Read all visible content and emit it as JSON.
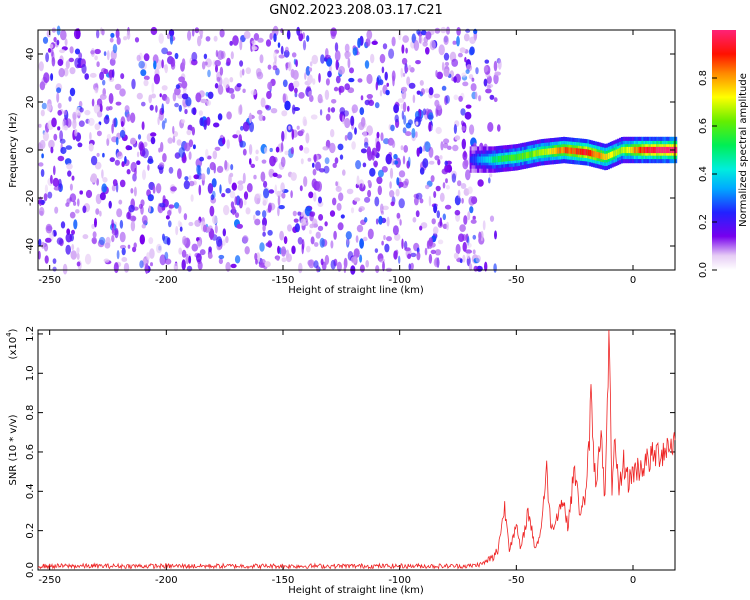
{
  "title": "GN02.2023.208.03.17.C21",
  "colors": {
    "snr_line": "#ee2222",
    "background": "#ffffff"
  },
  "chart_data": [
    {
      "type": "heatmap",
      "panel": "top",
      "xlabel": "Height of straight line (km)",
      "ylabel": "Frequency (Hz)",
      "xlim": [
        -255,
        18
      ],
      "ylim": [
        -50,
        50
      ],
      "xticks": [
        -250,
        -200,
        -150,
        -100,
        -50,
        0
      ],
      "xtick_labels": [
        "-250",
        "-200",
        "-150",
        "-100",
        "-50",
        "0"
      ],
      "yticks": [
        -40,
        -20,
        0,
        20,
        40
      ],
      "ytick_labels": [
        "-40",
        "-20",
        "0",
        "20",
        "40"
      ],
      "noise_region_x": [
        -255,
        -65
      ],
      "noise_amplitude": [
        0.05,
        0.3
      ],
      "signal_ridge": [
        {
          "x": -70,
          "freq": -4,
          "amp": 0.2
        },
        {
          "x": -60,
          "freq": -4,
          "amp": 0.45
        },
        {
          "x": -50,
          "freq": -3,
          "amp": 0.55
        },
        {
          "x": -40,
          "freq": -1,
          "amp": 0.6
        },
        {
          "x": -30,
          "freq": 0,
          "amp": 0.8
        },
        {
          "x": -20,
          "freq": -1,
          "amp": 0.9
        },
        {
          "x": -12,
          "freq": -3,
          "amp": 0.7
        },
        {
          "x": -5,
          "freq": 0,
          "amp": 0.6
        },
        {
          "x": 5,
          "freq": 0,
          "amp": 0.9
        },
        {
          "x": 18,
          "freq": 0,
          "amp": 1.0
        }
      ],
      "colorbar": {
        "label": "Normalized spectral amplitude",
        "range": [
          0,
          1
        ],
        "ticks": [
          0.0,
          0.2,
          0.4,
          0.6,
          0.8
        ],
        "tick_labels": [
          "0.0",
          "0.2",
          "0.4",
          "0.6",
          "0.8"
        ],
        "colormap": "rainbow (white-purple-blue-cyan-green-yellow-red-pink)"
      }
    },
    {
      "type": "line",
      "panel": "bottom",
      "xlabel": "Height of straight line (km)",
      "ylabel": "SNR (10 * v/v)",
      "scale_label": "(x10",
      "scale_exponent": "4",
      "xlim": [
        -255,
        18
      ],
      "ylim": [
        0,
        1.22
      ],
      "xticks": [
        -250,
        -200,
        -150,
        -100,
        -50,
        0
      ],
      "xtick_labels": [
        "-250",
        "-200",
        "-150",
        "-100",
        "-50",
        "0"
      ],
      "yticks": [
        0.0,
        0.2,
        0.4,
        0.6,
        0.8,
        1.0,
        1.2
      ],
      "ytick_labels": [
        "0.0",
        "0.2",
        "0.4",
        "0.6",
        "0.8",
        "1.0",
        "1.2"
      ],
      "series": [
        {
          "x": [
            -255,
            -240,
            -220,
            -200,
            -180,
            -160,
            -140,
            -120,
            -100,
            -80,
            -70,
            -65,
            -60,
            -58,
            -55,
            -53,
            -50,
            -48,
            -45,
            -42,
            -40,
            -37,
            -35,
            -32,
            -30,
            -28,
            -25,
            -23,
            -20,
            -18,
            -16,
            -14,
            -12,
            -10,
            -9,
            -8,
            -6,
            -4,
            -2,
            0,
            3,
            6,
            9,
            12,
            15,
            18
          ],
          "y": [
            0.02,
            0.02,
            0.02,
            0.02,
            0.02,
            0.02,
            0.02,
            0.02,
            0.02,
            0.02,
            0.02,
            0.03,
            0.06,
            0.1,
            0.32,
            0.12,
            0.22,
            0.1,
            0.3,
            0.12,
            0.16,
            0.5,
            0.2,
            0.3,
            0.36,
            0.22,
            0.52,
            0.3,
            0.38,
            0.86,
            0.42,
            0.72,
            0.36,
            1.22,
            0.36,
            0.62,
            0.4,
            0.55,
            0.45,
            0.5,
            0.52,
            0.55,
            0.58,
            0.6,
            0.63,
            0.66
          ]
        }
      ]
    }
  ]
}
